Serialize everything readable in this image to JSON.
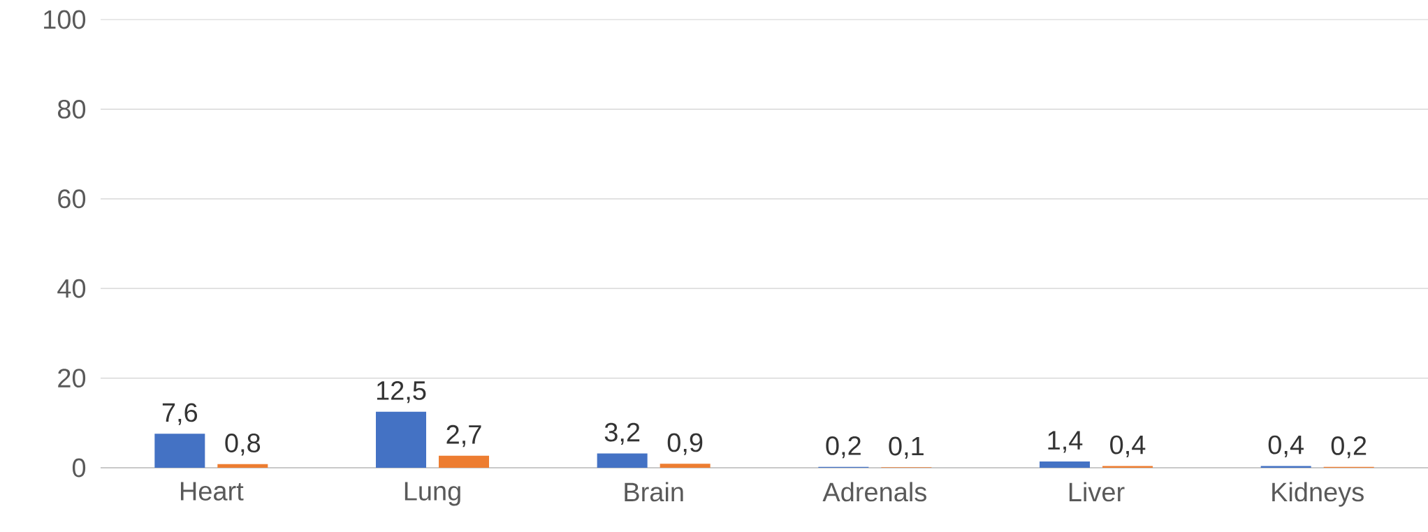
{
  "chart_data": {
    "type": "bar",
    "categories": [
      "Heart",
      "Lung",
      "Brain",
      "Adrenals",
      "Liver",
      "Kidneys"
    ],
    "series": [
      {
        "color": "#4472c4",
        "values": [
          7.6,
          12.5,
          3.2,
          0.2,
          1.4,
          0.4
        ],
        "value_labels": [
          "7,6",
          "12,5",
          "3,2",
          "0,2",
          "1,4",
          "0,4"
        ]
      },
      {
        "color": "#ed7d31",
        "values": [
          0.8,
          2.7,
          0.9,
          0.1,
          0.4,
          0.2
        ],
        "value_labels": [
          "0,8",
          "2,7",
          "0,9",
          "0,1",
          "0,4",
          "0,2"
        ]
      }
    ],
    "ylim": [
      0,
      100
    ],
    "yticks": [
      0,
      20,
      40,
      60,
      80,
      100
    ],
    "grid": "y"
  }
}
